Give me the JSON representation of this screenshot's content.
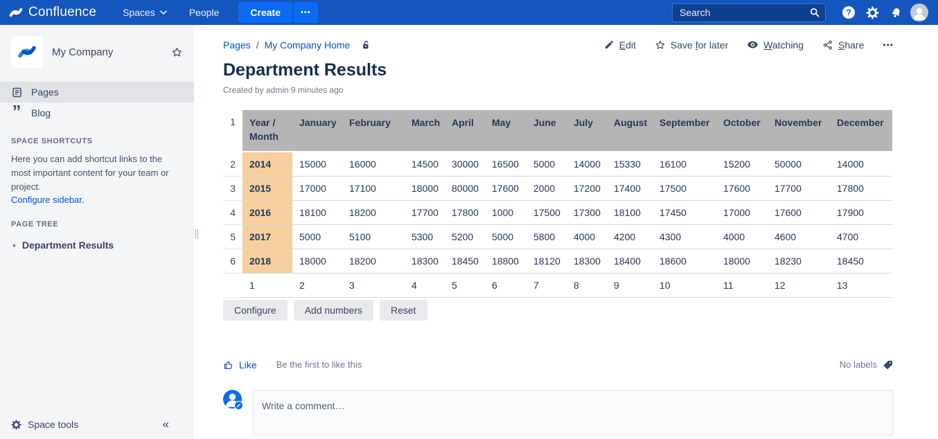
{
  "nav": {
    "brand": "Confluence",
    "menu": [
      {
        "label": "Spaces"
      },
      {
        "label": "People"
      }
    ],
    "create_label": "Create",
    "more_label": "•••",
    "search": {
      "placeholder": "Search"
    }
  },
  "sidebar": {
    "space_name": "My Company",
    "items": [
      {
        "label": "Pages",
        "selected": true
      },
      {
        "label": "Blog",
        "selected": false
      }
    ],
    "shortcuts_heading": "SPACE SHORTCUTS",
    "shortcuts_text": "Here you can add shortcut links to the most important content for your team or project.",
    "shortcuts_link": "Configure sidebar.",
    "page_tree_heading": "PAGE TREE",
    "page_tree": [
      "Department Results"
    ],
    "space_tools_label": "Space tools",
    "collapse_glyph": "«"
  },
  "breadcrumb": {
    "links": [
      "Pages",
      "My Company Home"
    ],
    "separator": "/"
  },
  "actions": [
    {
      "label": "Edit",
      "underline_index": 0,
      "icon": "pencil"
    },
    {
      "label": "Save for later",
      "underline_index": 5,
      "icon": "star"
    },
    {
      "label": "Watching",
      "underline_index": 0,
      "icon": "eye"
    },
    {
      "label": "Share",
      "underline_index": 0,
      "icon": "share"
    },
    {
      "label": "•••",
      "icon": "ellipsis"
    }
  ],
  "page": {
    "title": "Department Results",
    "byline": "Created by admin 9 minutes ago"
  },
  "table": {
    "header_row_number": "1",
    "columns": [
      "Year / Month",
      "January",
      "February",
      "March",
      "April",
      "May",
      "June",
      "July",
      "August",
      "September",
      "October",
      "November",
      "December"
    ],
    "rows": [
      {
        "row_number": "2",
        "year": "2014",
        "values": [
          15000,
          16000,
          14500,
          30000,
          16500,
          5000,
          14000,
          15330,
          16100,
          15200,
          50000,
          14000
        ]
      },
      {
        "row_number": "3",
        "year": "2015",
        "values": [
          17000,
          17100,
          18000,
          80000,
          17600,
          2000,
          17200,
          17400,
          17500,
          17600,
          17700,
          17800
        ]
      },
      {
        "row_number": "4",
        "year": "2016",
        "values": [
          18100,
          18200,
          17700,
          17800,
          1000,
          17500,
          17300,
          18100,
          17450,
          17000,
          17600,
          17900
        ]
      },
      {
        "row_number": "5",
        "year": "2017",
        "values": [
          5000,
          5100,
          5300,
          5200,
          5000,
          5800,
          4000,
          4200,
          4300,
          4000,
          4600,
          4700
        ]
      },
      {
        "row_number": "6",
        "year": "2018",
        "values": [
          18000,
          18200,
          18300,
          18450,
          18800,
          18120,
          18300,
          18400,
          18600,
          18000,
          18230,
          18450
        ]
      }
    ],
    "column_numbers": [
      "1",
      "2",
      "3",
      "4",
      "5",
      "6",
      "7",
      "8",
      "9",
      "10",
      "11",
      "12",
      "13"
    ]
  },
  "toolbar_buttons": [
    "Configure",
    "Add numbers",
    "Reset"
  ],
  "social": {
    "like_label": "Like",
    "like_hint": "Be the first to like this",
    "labels_text": "No labels"
  },
  "comment": {
    "placeholder": "Write a comment…"
  },
  "icons": {
    "nav_search": "magnifier",
    "help": "question-circle",
    "settings": "gear",
    "notifications": "bell",
    "profile": "person-avatar",
    "space_pages": "document",
    "space_blog": "double-quote",
    "space_favorite": "star-outline",
    "breadcrumb_restrictions": "open-padlock",
    "edit": "pencil",
    "save": "star-outline",
    "watch": "eye",
    "share": "share-nodes",
    "like": "thumbs-up",
    "labels": "tag",
    "space_tools": "gear",
    "collapse": "double-chevron-left"
  },
  "colors": {
    "nav_bg": "#1455BE",
    "nav_button_blue": "#0B6BF2",
    "link_blue": "#0052CC",
    "sidebar_bg": "#F4F5F7",
    "table_header_bg": "#B5B5B5",
    "year_cell_bg": "#F6CF9E",
    "title_text": "#172B4D",
    "body_text": "#253858"
  }
}
